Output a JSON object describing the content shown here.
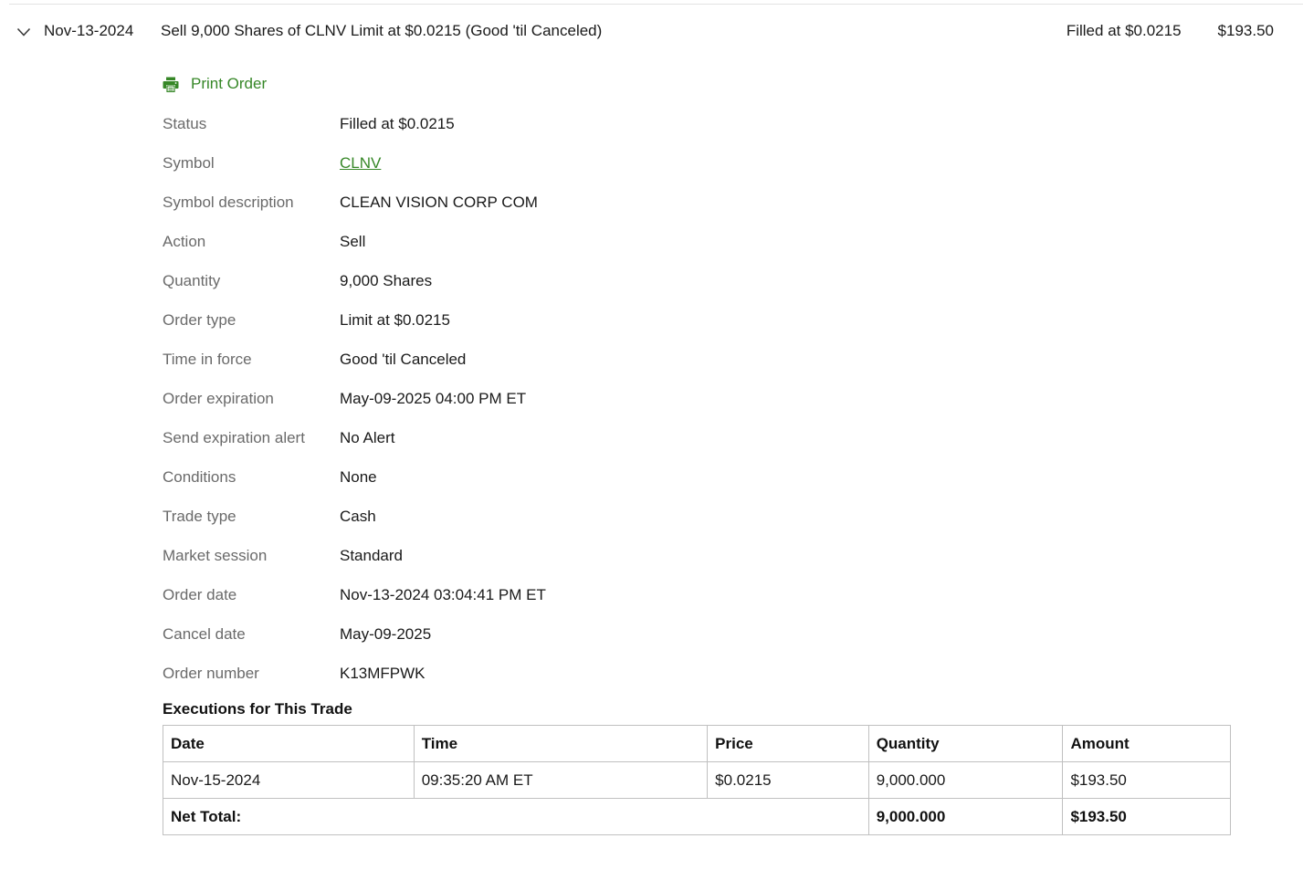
{
  "order_header": {
    "date": "Nov-13-2024",
    "title": "Sell 9,000 Shares of CLNV Limit at $0.0215 (Good 'til Canceled)",
    "fill_status": "Filled at $0.0215",
    "amount": "$193.50"
  },
  "print_order": {
    "label": "Print Order"
  },
  "details": [
    {
      "label": "Status",
      "value": "Filled at $0.0215",
      "link": false
    },
    {
      "label": "Symbol",
      "value": "CLNV",
      "link": true
    },
    {
      "label": "Symbol description",
      "value": "CLEAN VISION CORP COM",
      "link": false
    },
    {
      "label": "Action",
      "value": "Sell",
      "link": false
    },
    {
      "label": "Quantity",
      "value": "9,000 Shares",
      "link": false
    },
    {
      "label": "Order type",
      "value": "Limit at $0.0215",
      "link": false
    },
    {
      "label": "Time in force",
      "value": "Good 'til Canceled",
      "link": false
    },
    {
      "label": "Order expiration",
      "value": "May-09-2025 04:00 PM ET",
      "link": false
    },
    {
      "label": "Send expiration alert",
      "value": "No Alert",
      "link": false
    },
    {
      "label": "Conditions",
      "value": "None",
      "link": false
    },
    {
      "label": "Trade type",
      "value": "Cash",
      "link": false
    },
    {
      "label": "Market session",
      "value": "Standard",
      "link": false
    },
    {
      "label": "Order date",
      "value": "Nov-13-2024 03:04:41 PM ET",
      "link": false
    },
    {
      "label": "Cancel date",
      "value": "May-09-2025",
      "link": false
    },
    {
      "label": "Order number",
      "value": "K13MFPWK",
      "link": false
    }
  ],
  "executions": {
    "title": "Executions for This Trade",
    "columns": [
      "Date",
      "Time",
      "Price",
      "Quantity",
      "Amount"
    ],
    "rows": [
      [
        "Nov-15-2024",
        "09:35:20 AM ET",
        "$0.0215",
        "9,000.000",
        "$193.50"
      ]
    ],
    "net_total_label": "Net Total:",
    "net_total_quantity": "9,000.000",
    "net_total_amount": "$193.50"
  },
  "colors": {
    "link_green": "#368727",
    "label_gray": "#6a6a6a",
    "text_dark": "#1a1a1a",
    "border_gray": "#c0c0c0"
  }
}
